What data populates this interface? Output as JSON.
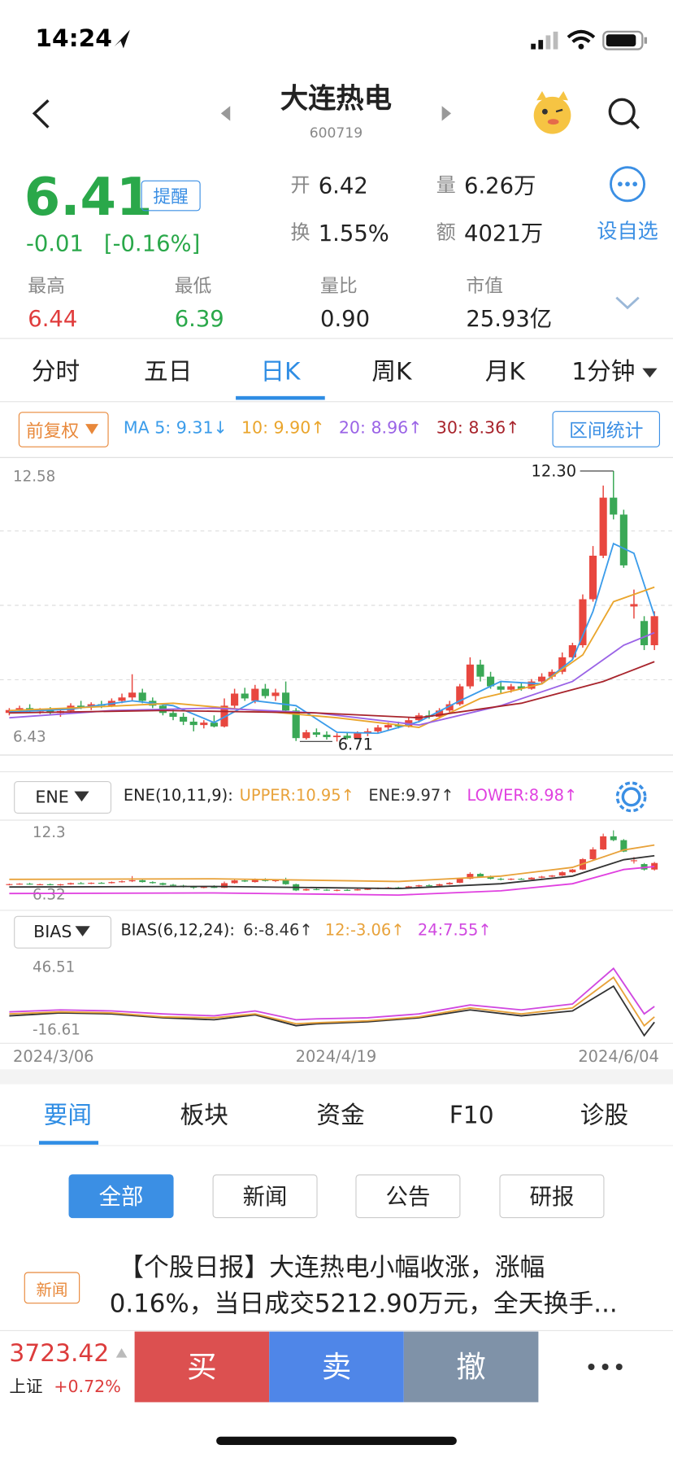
{
  "status_bar": {
    "time": "14:24"
  },
  "header": {
    "name": "大连热电",
    "code": "600719"
  },
  "quote": {
    "price": "6.41",
    "remind": "提醒",
    "change": "-0.01",
    "change_pct": "[-0.16%]",
    "open_label": "开",
    "open": "6.42",
    "volume_label": "量",
    "volume": "6.26万",
    "turnover_label": "换",
    "turnover": "1.55%",
    "amount_label": "额",
    "amount": "4021万",
    "add_watch": "设自选",
    "stats": [
      {
        "label": "最高",
        "value": "6.44",
        "color": "#e03c3c"
      },
      {
        "label": "最低",
        "value": "6.39",
        "color": "#2aa84a"
      },
      {
        "label": "量比",
        "value": "0.90",
        "color": "#222222"
      },
      {
        "label": "市值",
        "value": "25.93亿",
        "color": "#222222"
      }
    ]
  },
  "tabs": [
    "分时",
    "五日",
    "日K",
    "周K",
    "月K",
    "1分钟"
  ],
  "active_tab": 2,
  "kline": {
    "adjust": "前复权",
    "range_stats": "区间统计",
    "ylim": [
      6.43,
      12.58
    ],
    "yticks": [
      6.43,
      12.58
    ],
    "up_color": "#e8473f",
    "down_color": "#3aa856",
    "max_label": {
      "value": 12.3,
      "label": "12.30"
    },
    "min_label": 6.71,
    "candles": [
      [
        7.3,
        7.4,
        7.25,
        7.36
      ],
      [
        7.36,
        7.45,
        7.3,
        7.4
      ],
      [
        7.4,
        7.48,
        7.3,
        7.33
      ],
      [
        7.33,
        7.4,
        7.28,
        7.35
      ],
      [
        7.35,
        7.42,
        7.25,
        7.3
      ],
      [
        7.3,
        7.38,
        7.22,
        7.34
      ],
      [
        7.34,
        7.5,
        7.3,
        7.45
      ],
      [
        7.45,
        7.55,
        7.38,
        7.42
      ],
      [
        7.42,
        7.52,
        7.36,
        7.48
      ],
      [
        7.48,
        7.55,
        7.4,
        7.45
      ],
      [
        7.45,
        7.6,
        7.42,
        7.55
      ],
      [
        7.55,
        7.7,
        7.5,
        7.62
      ],
      [
        7.62,
        8.1,
        7.55,
        7.72
      ],
      [
        7.72,
        7.8,
        7.5,
        7.55
      ],
      [
        7.55,
        7.62,
        7.4,
        7.45
      ],
      [
        7.45,
        7.5,
        7.25,
        7.3
      ],
      [
        7.3,
        7.38,
        7.15,
        7.22
      ],
      [
        7.22,
        7.3,
        7.05,
        7.12
      ],
      [
        7.12,
        7.2,
        6.92,
        7.05
      ],
      [
        7.05,
        7.15,
        6.98,
        7.1
      ],
      [
        7.1,
        7.25,
        7.0,
        7.02
      ],
      [
        7.02,
        7.6,
        7.0,
        7.45
      ],
      [
        7.45,
        7.8,
        7.4,
        7.7
      ],
      [
        7.7,
        7.82,
        7.55,
        7.6
      ],
      [
        7.55,
        7.88,
        7.5,
        7.8
      ],
      [
        7.8,
        7.9,
        7.6,
        7.65
      ],
      [
        7.65,
        7.8,
        7.55,
        7.72
      ],
      [
        7.72,
        7.95,
        7.3,
        7.35
      ],
      [
        7.35,
        7.4,
        6.72,
        6.78
      ],
      [
        6.78,
        6.95,
        6.75,
        6.9
      ],
      [
        6.9,
        6.98,
        6.8,
        6.85
      ],
      [
        6.85,
        6.92,
        6.75,
        6.8
      ],
      [
        6.8,
        6.88,
        6.71,
        6.83
      ],
      [
        6.83,
        6.9,
        6.75,
        6.78
      ],
      [
        6.78,
        6.92,
        6.76,
        6.88
      ],
      [
        6.88,
        6.98,
        6.82,
        6.92
      ],
      [
        6.92,
        7.05,
        6.88,
        7.0
      ],
      [
        7.0,
        7.1,
        6.95,
        7.05
      ],
      [
        7.05,
        7.12,
        6.98,
        7.02
      ],
      [
        7.02,
        7.2,
        7.0,
        7.15
      ],
      [
        7.15,
        7.3,
        7.1,
        7.25
      ],
      [
        7.25,
        7.35,
        7.18,
        7.22
      ],
      [
        7.22,
        7.4,
        7.18,
        7.35
      ],
      [
        7.35,
        7.55,
        7.3,
        7.48
      ],
      [
        7.48,
        7.9,
        7.45,
        7.85
      ],
      [
        7.85,
        8.45,
        7.8,
        8.3
      ],
      [
        8.3,
        8.4,
        7.95,
        8.05
      ],
      [
        8.05,
        8.15,
        7.8,
        7.85
      ],
      [
        7.85,
        7.95,
        7.7,
        7.78
      ],
      [
        7.78,
        7.9,
        7.72,
        7.85
      ],
      [
        7.85,
        7.92,
        7.76,
        7.8
      ],
      [
        7.8,
        8.0,
        7.78,
        7.95
      ],
      [
        7.95,
        8.12,
        7.9,
        8.05
      ],
      [
        8.05,
        8.2,
        8.0,
        8.15
      ],
      [
        8.15,
        8.55,
        8.1,
        8.45
      ],
      [
        8.45,
        8.75,
        8.4,
        8.7
      ],
      [
        8.7,
        9.75,
        8.65,
        9.65
      ],
      [
        9.65,
        10.75,
        9.6,
        10.55
      ],
      [
        10.55,
        12.0,
        10.5,
        11.75
      ],
      [
        11.75,
        12.3,
        11.3,
        11.4
      ],
      [
        11.4,
        11.5,
        10.3,
        10.35
      ],
      [
        9.5,
        9.85,
        9.25,
        9.55
      ],
      [
        9.2,
        9.3,
        8.6,
        8.7
      ],
      [
        8.7,
        9.4,
        8.6,
        9.3
      ]
    ],
    "ma": [
      {
        "label": "MA 5: 9.31↓",
        "color": "#3b9cea",
        "x": [
          0,
          6,
          12,
          16,
          20,
          24,
          28,
          32,
          36,
          40,
          44,
          48,
          52,
          55,
          57,
          59,
          61,
          63
        ],
        "values": [
          7.32,
          7.38,
          7.55,
          7.45,
          7.1,
          7.55,
          7.45,
          6.9,
          6.88,
          7.12,
          7.55,
          7.95,
          7.9,
          8.4,
          9.4,
          10.8,
          10.6,
          9.31
        ]
      },
      {
        "label": "10: 9.90↑",
        "color": "#eaa52c",
        "x": [
          0,
          8,
          16,
          24,
          32,
          40,
          46,
          52,
          56,
          59,
          63
        ],
        "values": [
          7.35,
          7.42,
          7.5,
          7.35,
          7.2,
          7.0,
          7.6,
          7.9,
          8.5,
          9.6,
          9.9
        ]
      },
      {
        "label": "20: 8.96↑",
        "color": "#9a63e6",
        "x": [
          0,
          10,
          20,
          30,
          40,
          48,
          55,
          60,
          63
        ],
        "values": [
          7.2,
          7.35,
          7.4,
          7.3,
          7.05,
          7.45,
          7.95,
          8.7,
          8.96
        ]
      },
      {
        "label": "30: 8.36↑",
        "color": "#a8242c",
        "x": [
          0,
          15,
          30,
          40,
          50,
          58,
          63
        ],
        "values": [
          7.3,
          7.35,
          7.3,
          7.2,
          7.5,
          7.95,
          8.36
        ]
      }
    ]
  },
  "ene": {
    "selector": "ENE",
    "params": "ENE(10,11,9):",
    "ylim": [
      6.32,
      12.3
    ],
    "yticks": [
      6.32,
      12.3
    ],
    "lines": [
      {
        "label": "UPPER:10.95↑",
        "color": "#e8a23a",
        "x": [
          0,
          20,
          38,
          48,
          55,
          60,
          63
        ],
        "values": [
          7.8,
          7.85,
          7.6,
          8.1,
          8.9,
          10.5,
          10.95
        ]
      },
      {
        "label": "ENE:9.97↑",
        "color": "#333333",
        "x": [
          0,
          20,
          38,
          48,
          55,
          60,
          63
        ],
        "values": [
          7.1,
          7.15,
          6.95,
          7.4,
          8.1,
          9.6,
          9.97
        ]
      },
      {
        "label": "LOWER:8.98↑",
        "color": "#e040e0",
        "x": [
          0,
          20,
          38,
          48,
          55,
          60,
          63
        ],
        "values": [
          6.5,
          6.55,
          6.35,
          6.75,
          7.4,
          8.7,
          8.98
        ]
      }
    ]
  },
  "bias": {
    "selector": "BIAS",
    "params": "BIAS(6,12,24):",
    "ylim": [
      -16.61,
      46.51
    ],
    "yticks": [
      -16.61,
      46.51
    ],
    "lines": [
      {
        "label": "6:-8.46↑",
        "color": "#333333",
        "x": [
          0,
          5,
          10,
          15,
          20,
          24,
          28,
          30,
          35,
          40,
          45,
          50,
          55,
          59,
          62,
          63
        ],
        "values": [
          -2,
          1,
          0,
          -4,
          -6,
          -1,
          -12,
          -10,
          -8,
          -4,
          4,
          -2,
          3,
          28,
          -22,
          -8.46
        ]
      },
      {
        "label": "12:-3.06↑",
        "color": "#e8a23a",
        "x": [
          0,
          5,
          10,
          15,
          20,
          24,
          28,
          30,
          35,
          40,
          45,
          50,
          55,
          59,
          62,
          63
        ],
        "values": [
          0,
          2,
          1,
          -3,
          -4,
          0,
          -10,
          -9,
          -7,
          -3,
          6,
          0,
          6,
          37,
          -12,
          -3.06
        ]
      },
      {
        "label": "24:7.55↑",
        "color": "#d048e0",
        "x": [
          0,
          5,
          10,
          15,
          20,
          24,
          28,
          30,
          35,
          40,
          45,
          50,
          55,
          59,
          62,
          63
        ],
        "values": [
          2,
          4,
          3,
          0,
          -2,
          3,
          -6,
          -5,
          -4,
          0,
          9,
          4,
          10,
          46,
          0,
          7.55
        ]
      }
    ]
  },
  "dates": [
    "2024/3/06",
    "2024/4/19",
    "2024/6/04"
  ],
  "news_tabs": [
    "要闻",
    "板块",
    "资金",
    "F10",
    "诊股"
  ],
  "filters": [
    "全部",
    "新闻",
    "公告",
    "研报"
  ],
  "news": {
    "tag": "新闻",
    "line1": "【个股日报】大连热电小幅收涨，涨幅",
    "line2": "0.16%，当日成交5212.90万元，全天换手..."
  },
  "footer": {
    "index_value": "3723.42",
    "index_name": "上证",
    "index_change": "+0.72%",
    "buy": "买",
    "sell": "卖",
    "cancel": "撤"
  }
}
